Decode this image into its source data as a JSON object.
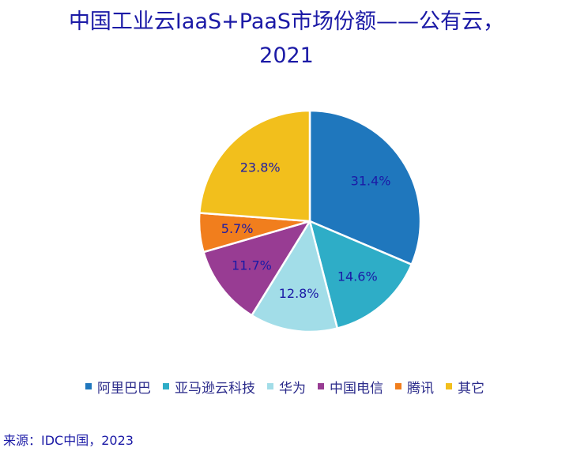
{
  "chart_data": {
    "type": "pie",
    "title_line1": "中国工业云IaaS+PaaS市场份额——公有云，",
    "title_line2": "2021",
    "categories": [
      "阿里巴巴",
      "亚马逊云科技",
      "华为",
      "中国电信",
      "腾讯",
      "其它"
    ],
    "values": [
      31.4,
      14.6,
      12.8,
      11.7,
      5.7,
      23.8
    ],
    "data_labels": [
      "31.4%",
      "14.6%",
      "12.8%",
      "11.7%",
      "5.7%",
      "23.8%"
    ],
    "colors": [
      "#1f77bd",
      "#2eadc7",
      "#a2dde8",
      "#983c93",
      "#f17e1d",
      "#f2bf1c"
    ],
    "label_color": "#1b1aa6",
    "legend_position": "bottom",
    "source": "来源：IDC中国，2023"
  }
}
